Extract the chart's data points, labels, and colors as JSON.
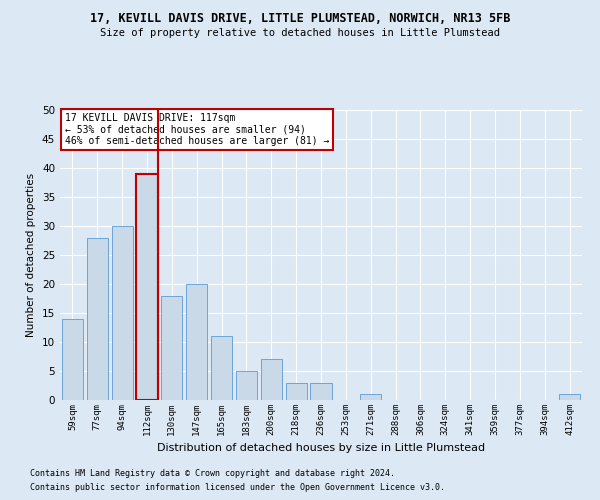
{
  "title1": "17, KEVILL DAVIS DRIVE, LITTLE PLUMSTEAD, NORWICH, NR13 5FB",
  "title2": "Size of property relative to detached houses in Little Plumstead",
  "xlabel": "Distribution of detached houses by size in Little Plumstead",
  "ylabel": "Number of detached properties",
  "categories": [
    "59sqm",
    "77sqm",
    "94sqm",
    "112sqm",
    "130sqm",
    "147sqm",
    "165sqm",
    "183sqm",
    "200sqm",
    "218sqm",
    "236sqm",
    "253sqm",
    "271sqm",
    "288sqm",
    "306sqm",
    "324sqm",
    "341sqm",
    "359sqm",
    "377sqm",
    "394sqm",
    "412sqm"
  ],
  "values": [
    14,
    28,
    30,
    39,
    18,
    20,
    11,
    5,
    7,
    3,
    3,
    0,
    1,
    0,
    0,
    0,
    0,
    0,
    0,
    0,
    1
  ],
  "bar_color": "#c9d9e8",
  "bar_edge_color": "#5b9bd5",
  "highlight_bar_index": 3,
  "highlight_edge_color": "#c00000",
  "vline_color": "#c00000",
  "ylim": [
    0,
    50
  ],
  "yticks": [
    0,
    5,
    10,
    15,
    20,
    25,
    30,
    35,
    40,
    45,
    50
  ],
  "annotation_text": "17 KEVILL DAVIS DRIVE: 117sqm\n← 53% of detached houses are smaller (94)\n46% of semi-detached houses are larger (81) →",
  "annotation_box_color": "#ffffff",
  "annotation_box_edge": "#c00000",
  "footnote1": "Contains HM Land Registry data © Crown copyright and database right 2024.",
  "footnote2": "Contains public sector information licensed under the Open Government Licence v3.0.",
  "background_color": "#dce9f5",
  "grid_color": "#ffffff"
}
